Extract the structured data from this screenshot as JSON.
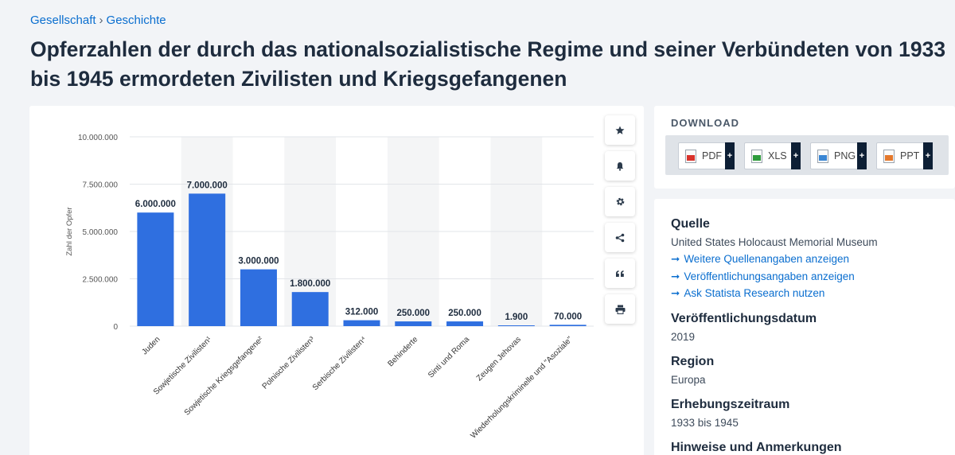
{
  "breadcrumb": {
    "item1": "Gesellschaft",
    "separator": "›",
    "item2": "Geschichte"
  },
  "title_line1": "Opferzahlen der durch das nationalsozialistische Regime und seiner Verbündeten von 1933",
  "title_line2": "bis 1945 ermordeten Zivilisten und Kriegsgefangenen",
  "chart_data": {
    "type": "bar",
    "title": "",
    "xlabel": "",
    "ylabel": "Zahl der Opfer",
    "ylim": [
      0,
      10000000
    ],
    "yticks": [
      0,
      2500000,
      5000000,
      7500000,
      10000000
    ],
    "ytick_labels": [
      "0",
      "2.500.000",
      "5.000.000",
      "7.500.000",
      "10.000.000"
    ],
    "grid": true,
    "bar_color": "#2f6fe0",
    "categories": [
      "Juden",
      "Sowjetische Zivilisten¹",
      "Sowjetische Kriegsgefangene²",
      "Polnische Zivilisten³",
      "Serbische Zivilisten⁴",
      "Behinderte",
      "Sinti und Roma",
      "Zeugen Jehovas",
      "Wiederholungskriminelle und \"Asoziale\""
    ],
    "values": [
      6000000,
      7000000,
      3000000,
      1800000,
      312000,
      250000,
      250000,
      1900,
      70000
    ],
    "value_labels": [
      "6.000.000",
      "7.000.000",
      "3.000.000",
      "1.800.000",
      "312.000",
      "250.000",
      "250.000",
      "1.900",
      "70.000"
    ]
  },
  "toolbar": {
    "star": "star-icon",
    "bell": "bell-icon",
    "settings": "gear-icon",
    "share": "share-icon",
    "cite": "quote-icon",
    "print": "print-icon"
  },
  "download": {
    "title": "DOWNLOAD",
    "plus": "+",
    "pdf": "PDF",
    "pdf_color": "#d9322b",
    "xls": "XLS",
    "xls_color": "#2e9b3c",
    "png": "PNG",
    "png_color": "#3a86d4",
    "ppt": "PPT",
    "ppt_color": "#e4782c"
  },
  "info": {
    "source_heading": "Quelle",
    "source_value": "United States Holocaust Memorial Museum",
    "arrow": "➞",
    "link1": "Weitere Quellenangaben anzeigen",
    "link2": "Veröffentlichungsangaben anzeigen",
    "link3": "Ask Statista Research nutzen",
    "pubdate_heading": "Veröffentlichungsdatum",
    "pubdate_value": "2019",
    "region_heading": "Region",
    "region_value": "Europa",
    "period_heading": "Erhebungszeitraum",
    "period_value": "1933 bis 1945",
    "notes_heading": "Hinweise und Anmerkungen"
  }
}
